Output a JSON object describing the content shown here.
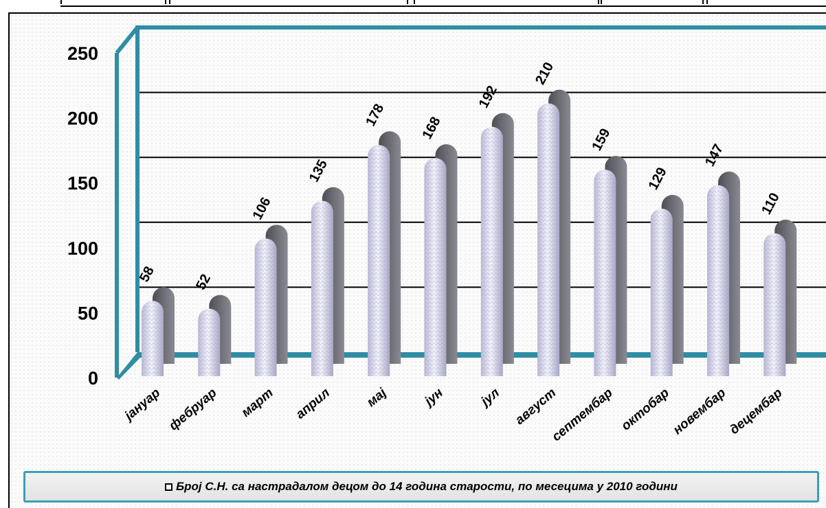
{
  "colors": {
    "frame_accent": "#2f8da4",
    "bar_fill": "#dcdcf2",
    "bar_shadow": "#6b6b73",
    "gridline": "#000000"
  },
  "chart_data": {
    "type": "bar",
    "style": "3d-cylinder",
    "categories": [
      "јануар",
      "фебруар",
      "март",
      "април",
      "мај",
      "јун",
      "јул",
      "август",
      "септембар",
      "октобар",
      "новембар",
      "децембар"
    ],
    "series": [
      {
        "name": "Број С.Н. са настрадалом децом до 14 година старости,  по месецима у 2010 години",
        "values": [
          58,
          52,
          106,
          135,
          178,
          168,
          192,
          210,
          159,
          129,
          147,
          110
        ]
      }
    ],
    "y_ticks": [
      "0",
      "50",
      "100",
      "150",
      "200",
      "250"
    ],
    "ylim": [
      0,
      250
    ],
    "grid": true,
    "legend_position": "bottom"
  }
}
